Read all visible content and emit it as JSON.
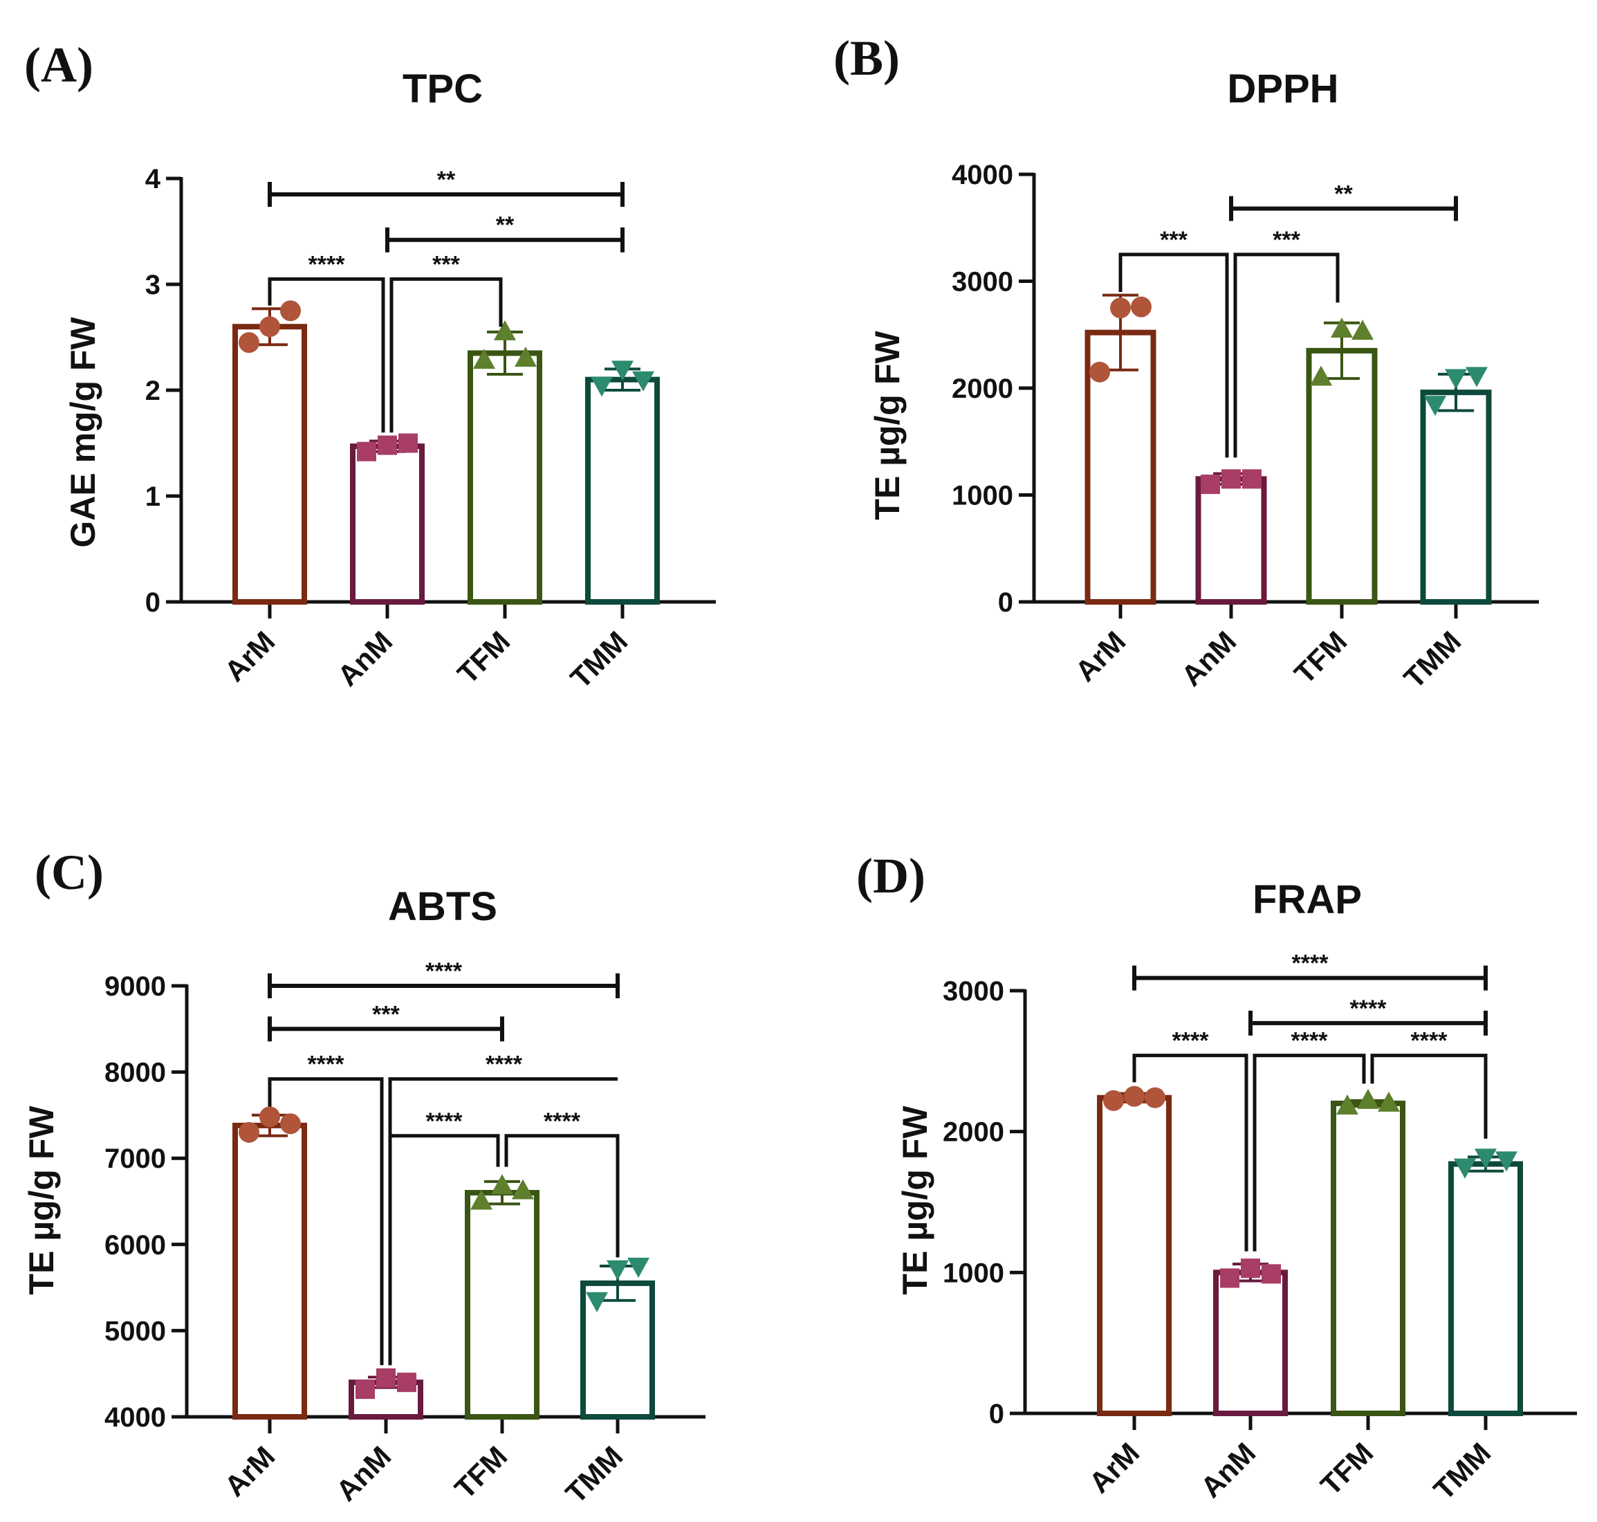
{
  "figure": {
    "colors": {
      "ArM": "#7a2a12",
      "AnM": "#6a1a3e",
      "TFM": "#3a5514",
      "TMM": "#0e4a3c",
      "ArM_point": "#b0553a",
      "AnM_point": "#a83d66",
      "TFM_point": "#5e7f2c",
      "TMM_point": "#2c8a6e"
    }
  },
  "chart_data": [
    {
      "panel": "(A)",
      "type": "bar",
      "title": "TPC",
      "ylabel": "GAE mg/g FW",
      "xlabel": "",
      "categories": [
        "ArM",
        "AnM",
        "TFM",
        "TMM"
      ],
      "markers": [
        "circle",
        "square",
        "triangle-up",
        "triangle-down"
      ],
      "ylim": [
        0,
        4
      ],
      "yticks": [
        0,
        1,
        2,
        3,
        4
      ],
      "values": [
        2.6,
        1.47,
        2.35,
        2.1
      ],
      "errors": [
        0.17,
        0.05,
        0.2,
        0.1
      ],
      "points": [
        [
          2.45,
          2.6,
          2.75
        ],
        [
          1.42,
          1.48,
          1.5
        ],
        [
          2.28,
          2.55,
          2.3
        ],
        [
          2.05,
          2.2,
          2.1
        ]
      ],
      "comparisons": [
        {
          "from": 0,
          "to": 3,
          "label": "**",
          "y": 3.85
        },
        {
          "from": 1,
          "to": 3,
          "label": "**",
          "y": 3.42
        },
        {
          "from": 0,
          "to": 1,
          "label": "****",
          "y": 3.05,
          "drop_to": [
            2.8,
            1.6
          ]
        },
        {
          "from": 1,
          "to": 2,
          "label": "***",
          "y": 3.05,
          "drop_to": [
            1.6,
            2.6
          ]
        }
      ]
    },
    {
      "panel": "(B)",
      "type": "bar",
      "title": "DPPH",
      "ylabel": "TE µg/g FW",
      "xlabel": "",
      "categories": [
        "ArM",
        "AnM",
        "TFM",
        "TMM"
      ],
      "markers": [
        "circle",
        "square",
        "triangle-up",
        "triangle-down"
      ],
      "ylim": [
        0,
        4000
      ],
      "yticks": [
        0,
        1000,
        2000,
        3000,
        4000
      ],
      "values": [
        2520,
        1150,
        2350,
        1960
      ],
      "errors": [
        350,
        50,
        260,
        170
      ],
      "points": [
        [
          2150,
          2750,
          2760
        ],
        [
          1100,
          1150,
          1150
        ],
        [
          2100,
          2550,
          2530
        ],
        [
          1850,
          2100,
          2120
        ]
      ],
      "comparisons": [
        {
          "from": 1,
          "to": 3,
          "label": "**",
          "y": 3680
        },
        {
          "from": 0,
          "to": 1,
          "label": "***",
          "y": 3250,
          "drop_to": [
            2900,
            1350
          ]
        },
        {
          "from": 1,
          "to": 2,
          "label": "***",
          "y": 3250,
          "drop_to": [
            1350,
            2800
          ]
        }
      ]
    },
    {
      "panel": "(C)",
      "type": "bar",
      "title": "ABTS",
      "ylabel": "TE µg/g FW",
      "xlabel": "",
      "categories": [
        "ArM",
        "AnM",
        "TFM",
        "TMM"
      ],
      "markers": [
        "circle",
        "square",
        "triangle-up",
        "triangle-down"
      ],
      "ylim": [
        4000,
        9000
      ],
      "yticks": [
        4000,
        5000,
        6000,
        7000,
        8000,
        9000
      ],
      "values": [
        7380,
        4400,
        6600,
        5550
      ],
      "errors": [
        120,
        60,
        130,
        200
      ],
      "points": [
        [
          7300,
          7480,
          7400
        ],
        [
          4320,
          4450,
          4400
        ],
        [
          6500,
          6680,
          6620
        ],
        [
          5350,
          5720,
          5750
        ]
      ],
      "comparisons": [
        {
          "from": 0,
          "to": 3,
          "label": "****",
          "y": 9000
        },
        {
          "from": 0,
          "to": 2,
          "label": "***",
          "y": 8500
        },
        {
          "from": 0,
          "to": 1,
          "label": "****",
          "y": 7920,
          "drop_to": [
            7600,
            4600
          ]
        },
        {
          "from": 1,
          "to": 3,
          "label": "****",
          "y": 7920,
          "drop_to": [
            4600,
            7920
          ]
        },
        {
          "from": 1,
          "to": 2,
          "label": "****",
          "y": 7260,
          "drop_to": [
            4600,
            6900
          ]
        },
        {
          "from": 2,
          "to": 3,
          "label": "****",
          "y": 7260,
          "drop_to": [
            6900,
            5850
          ]
        }
      ]
    },
    {
      "panel": "(D)",
      "type": "bar",
      "title": "FRAP",
      "ylabel": "TE µg/g FW",
      "xlabel": "",
      "categories": [
        "ArM",
        "AnM",
        "TFM",
        "TMM"
      ],
      "markers": [
        "circle",
        "square",
        "triangle-up",
        "triangle-down"
      ],
      "ylim": [
        0,
        3000
      ],
      "yticks": [
        0,
        1000,
        2000,
        3000
      ],
      "values": [
        2240,
        1000,
        2200,
        1770
      ],
      "errors": [
        30,
        60,
        20,
        50
      ],
      "points": [
        [
          2220,
          2250,
          2240
        ],
        [
          960,
          1030,
          990
        ],
        [
          2180,
          2220,
          2200
        ],
        [
          1750,
          1820,
          1800
        ]
      ],
      "comparisons": [
        {
          "from": 0,
          "to": 3,
          "label": "****",
          "y": 3090
        },
        {
          "from": 1,
          "to": 3,
          "label": "****",
          "y": 2770
        },
        {
          "from": 0,
          "to": 1,
          "label": "****",
          "y": 2540,
          "drop_to": [
            2350,
            1150
          ]
        },
        {
          "from": 1,
          "to": 2,
          "label": "****",
          "y": 2540,
          "drop_to": [
            1150,
            2340
          ]
        },
        {
          "from": 2,
          "to": 3,
          "label": "****",
          "y": 2540,
          "drop_to": [
            2340,
            1950
          ]
        }
      ]
    }
  ]
}
